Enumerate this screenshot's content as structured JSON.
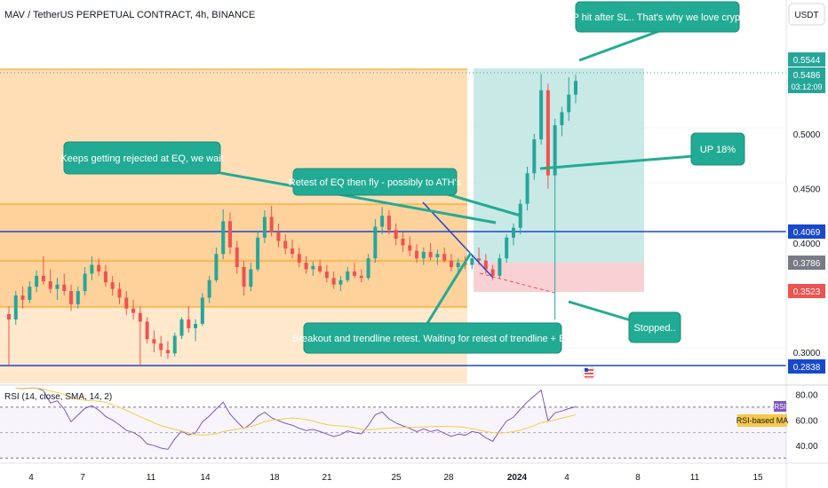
{
  "header": {
    "symbol_title": "MAV / TetherUS PERPETUAL CONTRACT, 4h, BINANCE",
    "currency_button": "USDT"
  },
  "rsi_panel": {
    "title": "RSI (14, close, SMA, 14, 2)",
    "rsi_tag": "RSI",
    "ma_tag": "RSI-based MA",
    "levels": [
      80,
      60,
      40
    ],
    "upper_band": 70,
    "lower_band": 30,
    "ylim": [
      26,
      86
    ]
  },
  "price_tags": {
    "high": "0.5544",
    "last": "0.5486",
    "countdown": "03:12:09",
    "upper_line": "0.4069",
    "entry": "0.3786",
    "stop": "0.3523",
    "lower_line": "0.2838"
  },
  "annotations": {
    "tp": "TP hit after SL.. That's why we love crypto",
    "up": "UP 18%",
    "rejected": "Keeps getting rejected at EQ, we wait",
    "retest": "Retest of EQ then fly - possibly to ATH's",
    "breakout": "Breakout and trendline retest. Waiting for retest of trendline + EQ",
    "stopped": "Stopped.."
  },
  "colors": {
    "up_candle": "#26a69a",
    "down_candle": "#ef5350",
    "range_fill": "#ffd8a8",
    "annotation_fill": "#22ab94",
    "hline_blue": "#1848cc",
    "target_zone": "#b2dfdb",
    "stop_zone": "#f8c9cc",
    "rsi_line": "#7e57c2",
    "rsi_ma": "#f7c948"
  },
  "chart_data": {
    "type": "candlestick",
    "x_tick_labels": [
      "4",
      "7",
      "11",
      "14",
      "18",
      "21",
      "25",
      "28",
      "2024",
      "4",
      "8",
      "11",
      "15"
    ],
    "y_tick_labels": [
      "0.5000",
      "0.4500",
      "0.4000",
      "0.3000"
    ],
    "y_ticks": [
      0.5,
      0.45,
      0.4,
      0.3
    ],
    "ylim": [
      0.2715,
      0.6065
    ],
    "horizontal_lines": [
      0.4069,
      0.2838
    ],
    "range_levels": {
      "top": 0.5544,
      "upper": 0.433,
      "eq": 0.3805,
      "lower": 0.3395,
      "bottom": 0.2715
    },
    "position": {
      "entry": 0.3786,
      "target": 0.5544,
      "stop": 0.3523
    },
    "candles": [
      [
        0.335,
        0.342,
        0.288,
        0.33
      ],
      [
        0.33,
        0.356,
        0.325,
        0.352
      ],
      [
        0.352,
        0.36,
        0.34,
        0.348
      ],
      [
        0.348,
        0.365,
        0.345,
        0.36
      ],
      [
        0.36,
        0.375,
        0.355,
        0.37
      ],
      [
        0.37,
        0.388,
        0.362,
        0.365
      ],
      [
        0.365,
        0.376,
        0.354,
        0.358
      ],
      [
        0.358,
        0.368,
        0.348,
        0.362
      ],
      [
        0.362,
        0.372,
        0.352,
        0.356
      ],
      [
        0.356,
        0.362,
        0.338,
        0.344
      ],
      [
        0.344,
        0.36,
        0.34,
        0.356
      ],
      [
        0.356,
        0.378,
        0.352,
        0.372
      ],
      [
        0.372,
        0.388,
        0.366,
        0.38
      ],
      [
        0.38,
        0.386,
        0.37,
        0.374
      ],
      [
        0.374,
        0.38,
        0.36,
        0.364
      ],
      [
        0.364,
        0.37,
        0.352,
        0.358
      ],
      [
        0.358,
        0.364,
        0.344,
        0.35
      ],
      [
        0.35,
        0.356,
        0.334,
        0.34
      ],
      [
        0.34,
        0.348,
        0.33,
        0.336
      ],
      [
        0.336,
        0.342,
        0.288,
        0.328
      ],
      [
        0.328,
        0.332,
        0.308,
        0.312
      ],
      [
        0.312,
        0.32,
        0.3,
        0.308
      ],
      [
        0.308,
        0.315,
        0.296,
        0.302
      ],
      [
        0.302,
        0.31,
        0.294,
        0.299
      ],
      [
        0.299,
        0.318,
        0.296,
        0.315
      ],
      [
        0.315,
        0.332,
        0.312,
        0.33
      ],
      [
        0.33,
        0.342,
        0.318,
        0.322
      ],
      [
        0.322,
        0.33,
        0.31,
        0.326
      ],
      [
        0.326,
        0.354,
        0.324,
        0.35
      ],
      [
        0.35,
        0.37,
        0.345,
        0.366
      ],
      [
        0.366,
        0.396,
        0.364,
        0.39
      ],
      [
        0.39,
        0.431,
        0.385,
        0.42
      ],
      [
        0.42,
        0.428,
        0.39,
        0.396
      ],
      [
        0.396,
        0.402,
        0.372,
        0.378
      ],
      [
        0.378,
        0.384,
        0.352,
        0.36
      ],
      [
        0.36,
        0.382,
        0.356,
        0.376
      ],
      [
        0.376,
        0.41,
        0.374,
        0.405
      ],
      [
        0.405,
        0.43,
        0.4,
        0.424
      ],
      [
        0.424,
        0.434,
        0.406,
        0.41
      ],
      [
        0.41,
        0.418,
        0.396,
        0.402
      ],
      [
        0.402,
        0.408,
        0.39,
        0.395
      ],
      [
        0.395,
        0.403,
        0.386,
        0.39
      ],
      [
        0.39,
        0.396,
        0.378,
        0.382
      ],
      [
        0.382,
        0.388,
        0.372,
        0.376
      ],
      [
        0.376,
        0.383,
        0.37,
        0.379
      ],
      [
        0.379,
        0.385,
        0.372,
        0.374
      ],
      [
        0.374,
        0.38,
        0.364,
        0.368
      ],
      [
        0.368,
        0.374,
        0.358,
        0.362
      ],
      [
        0.362,
        0.37,
        0.356,
        0.366
      ],
      [
        0.366,
        0.378,
        0.364,
        0.374
      ],
      [
        0.374,
        0.382,
        0.368,
        0.37
      ],
      [
        0.37,
        0.376,
        0.364,
        0.368
      ],
      [
        0.368,
        0.39,
        0.366,
        0.386
      ],
      [
        0.386,
        0.422,
        0.382,
        0.415
      ],
      [
        0.415,
        0.433,
        0.408,
        0.425
      ],
      [
        0.425,
        0.43,
        0.408,
        0.412
      ],
      [
        0.412,
        0.418,
        0.398,
        0.404
      ],
      [
        0.404,
        0.41,
        0.392,
        0.398
      ],
      [
        0.398,
        0.406,
        0.388,
        0.393
      ],
      [
        0.393,
        0.399,
        0.382,
        0.386
      ],
      [
        0.386,
        0.396,
        0.38,
        0.392
      ],
      [
        0.392,
        0.4,
        0.384,
        0.387
      ],
      [
        0.387,
        0.394,
        0.38,
        0.39
      ],
      [
        0.39,
        0.396,
        0.382,
        0.384
      ],
      [
        0.384,
        0.39,
        0.374,
        0.378
      ],
      [
        0.378,
        0.386,
        0.372,
        0.382
      ],
      [
        0.382,
        0.388,
        0.376,
        0.38
      ],
      [
        0.38,
        0.39,
        0.376,
        0.386
      ],
      [
        0.386,
        0.396,
        0.38,
        0.384
      ],
      [
        0.384,
        0.39,
        0.372,
        0.376
      ],
      [
        0.376,
        0.38,
        0.366,
        0.37
      ],
      [
        0.37,
        0.39,
        0.368,
        0.386
      ],
      [
        0.386,
        0.408,
        0.382,
        0.405
      ],
      [
        0.405,
        0.418,
        0.398,
        0.414
      ],
      [
        0.414,
        0.44,
        0.408,
        0.436
      ],
      [
        0.436,
        0.47,
        0.43,
        0.464
      ],
      [
        0.464,
        0.5,
        0.458,
        0.495
      ],
      [
        0.495,
        0.555,
        0.49,
        0.54
      ],
      [
        0.54,
        0.546,
        0.45,
        0.462
      ],
      [
        0.462,
        0.514,
        0.33,
        0.508
      ],
      [
        0.508,
        0.525,
        0.498,
        0.52
      ],
      [
        0.52,
        0.552,
        0.512,
        0.536
      ],
      [
        0.536,
        0.5544,
        0.528,
        0.5486
      ]
    ]
  }
}
